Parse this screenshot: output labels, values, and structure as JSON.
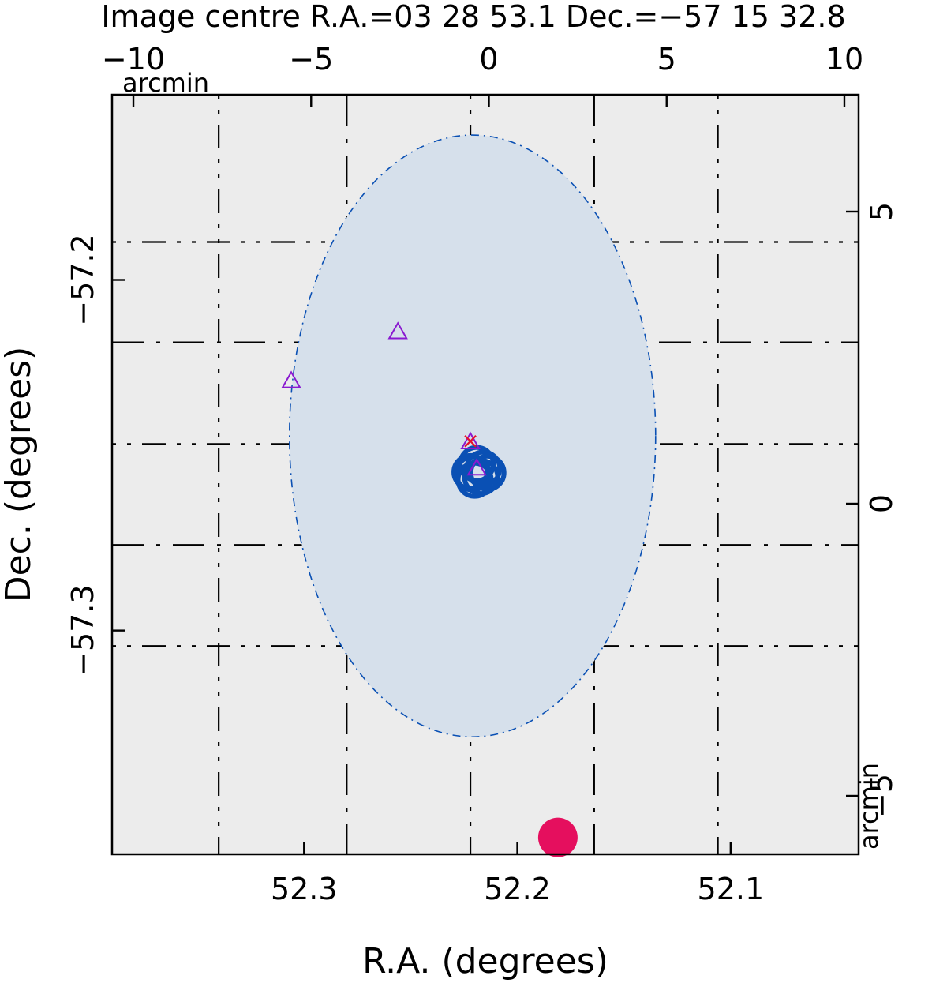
{
  "chart_data": {
    "type": "scatter",
    "title": "Image centre R.A.=03 28 53.1 Dec.=−57 15 32.8",
    "xlabel": "R.A. (degrees)",
    "ylabel": "Dec. (degrees)",
    "top_axis_label": "arcmin",
    "right_axis_label": "arcmin",
    "xlim": [
      52.39,
      52.04
    ],
    "ylim": [
      -57.3638,
      -57.1472
    ],
    "x_reversed": true,
    "top_xlim": [
      -10.6,
      10.4
    ],
    "right_ylim": [
      -6.0,
      7.0
    ],
    "bottom_ticks": [
      {
        "value": 52.3,
        "label": "52.3"
      },
      {
        "value": 52.2,
        "label": "52.2"
      },
      {
        "value": 52.1,
        "label": "52.1"
      }
    ],
    "left_ticks": [
      {
        "value": -57.2,
        "label": "−57.2"
      },
      {
        "value": -57.3,
        "label": "−57.3"
      }
    ],
    "top_ticks": [
      {
        "value": -10,
        "label": "−10"
      },
      {
        "value": -5,
        "label": "−5"
      },
      {
        "value": 0,
        "label": "0"
      },
      {
        "value": 5,
        "label": "5"
      },
      {
        "value": 10,
        "label": "10"
      }
    ],
    "right_ticks": [
      {
        "value": 5,
        "label": "5"
      },
      {
        "value": 0,
        "label": "0"
      },
      {
        "value": -5,
        "label": "−5"
      }
    ],
    "grid": true,
    "grid_ra": [
      52.34,
      52.28,
      52.222,
      52.164,
      52.106
    ],
    "grid_dec": [
      -57.1892,
      -57.2178,
      -57.2468,
      -57.2756,
      -57.3044
    ],
    "error_circle": {
      "x": 52.221,
      "y": -57.2445,
      "r_arcmin": 5.15,
      "fill": "#d6e0eb",
      "stroke": "#0a50b4"
    },
    "series": [
      {
        "marker": "triangle",
        "color": "#8a1ad0",
        "points": [
          {
            "x": 52.256,
            "y": -57.2148
          },
          {
            "x": 52.306,
            "y": -57.2288
          },
          {
            "x": 52.222,
            "y": -57.2462
          },
          {
            "x": 52.219,
            "y": -57.2537
          }
        ]
      },
      {
        "marker": "circle",
        "color": "#0a50b4",
        "points": [
          {
            "x": 52.219,
            "y": -57.2525
          },
          {
            "x": 52.216,
            "y": -57.2538
          },
          {
            "x": 52.221,
            "y": -57.2552
          },
          {
            "x": 52.217,
            "y": -57.2562
          },
          {
            "x": 52.222,
            "y": -57.2548
          },
          {
            "x": 52.214,
            "y": -57.255
          },
          {
            "x": 52.22,
            "y": -57.257
          }
        ]
      },
      {
        "marker": "cross",
        "color": "#e8102a",
        "points": [
          {
            "x": 52.222,
            "y": -57.246
          }
        ]
      },
      {
        "marker": "filled-circle",
        "color": "#e50f5e",
        "points": [
          {
            "x": 52.181,
            "y": -57.359
          }
        ]
      }
    ]
  }
}
